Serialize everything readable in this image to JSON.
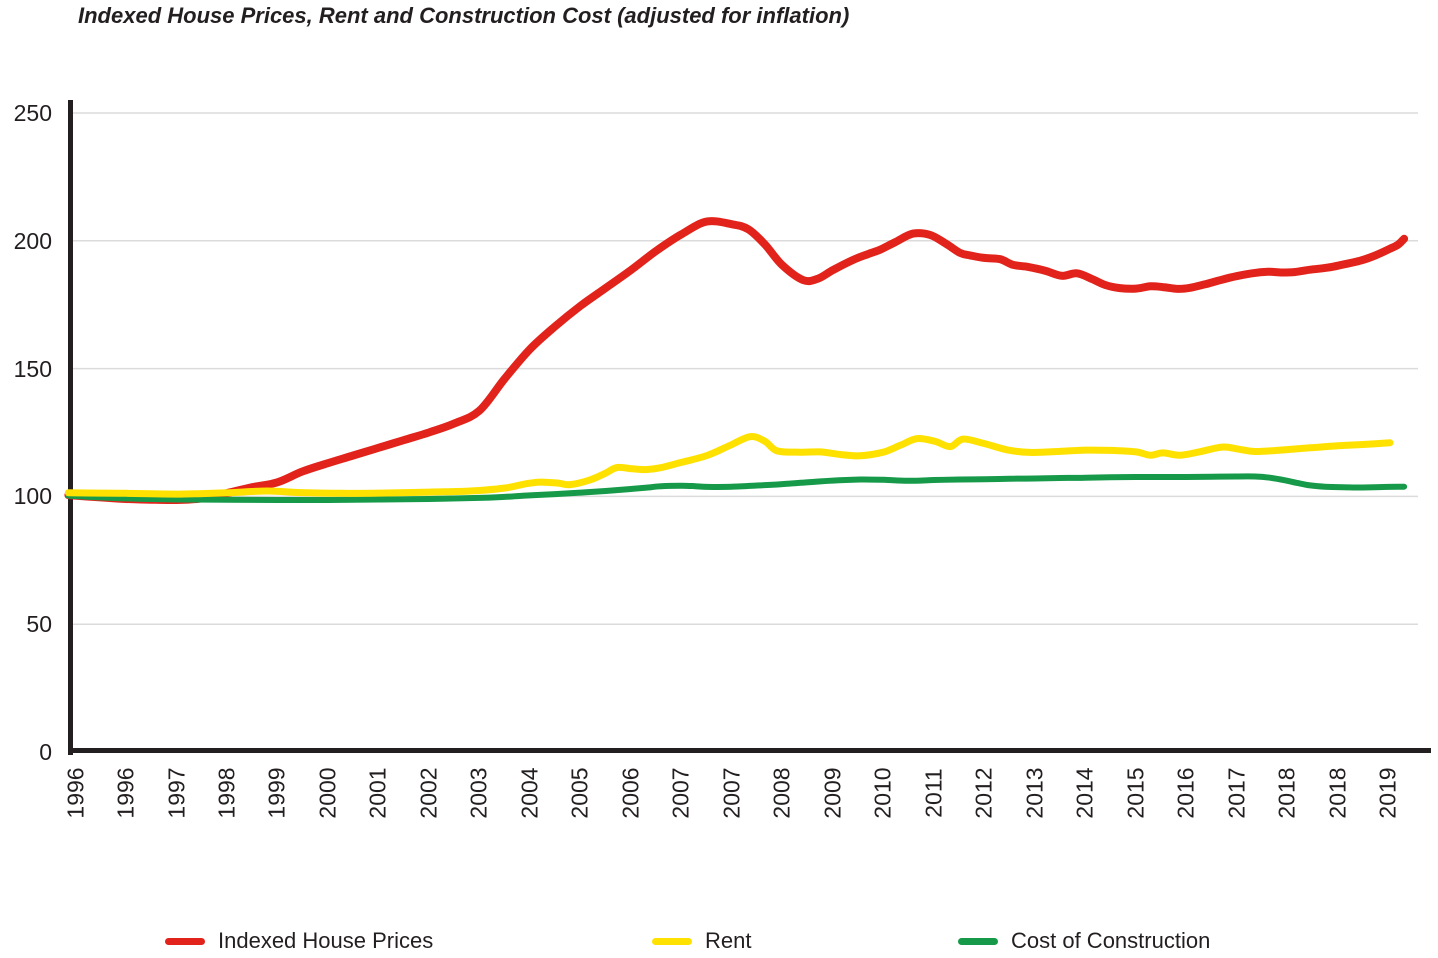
{
  "title": "Indexed House Prices, Rent and Construction Cost (adjusted for inflation)",
  "legend": [
    {
      "label": "Indexed House Prices",
      "color": "#e2231b"
    },
    {
      "label": "Rent",
      "color": "#ffe100"
    },
    {
      "label": "Cost of Construction",
      "color": "#169a49"
    }
  ],
  "colors": {
    "grid": "#dbdbdb",
    "axis": "#231f20",
    "text": "#231f20",
    "background": "#ffffff"
  },
  "chart_data": {
    "type": "line",
    "title": "Indexed House Prices, Rent and Construction Cost (adjusted for inflation)",
    "xlabel": "",
    "ylabel": "",
    "ylim": [
      0,
      250
    ],
    "y_ticks": [
      0,
      50,
      100,
      150,
      200,
      250
    ],
    "grid": "horizontal",
    "legend_position": "bottom",
    "x_unit": "tick-index (0 = first tick, 26 = last tick)",
    "x_tick_labels": [
      "1996",
      "1996",
      "1997",
      "1998",
      "1999",
      "2000",
      "2001",
      "2002",
      "2003",
      "2004",
      "2005",
      "2006",
      "2007",
      "2007",
      "2008",
      "2009",
      "2010",
      "2011",
      "2012",
      "2013",
      "2014",
      "2015",
      "2016",
      "2017",
      "2018",
      "2018",
      "2019"
    ],
    "series": [
      {
        "name": "Indexed House Prices",
        "color": "#e2231b",
        "stroke_width": 8,
        "points": [
          [
            -0.14,
            100.5
          ],
          [
            0.5,
            99.6
          ],
          [
            1.0,
            99.0
          ],
          [
            1.5,
            98.7
          ],
          [
            2.0,
            98.6
          ],
          [
            2.5,
            99.2
          ],
          [
            3.0,
            101.3
          ],
          [
            3.5,
            103.6
          ],
          [
            4.0,
            105.5
          ],
          [
            4.5,
            109.8
          ],
          [
            5.0,
            113.0
          ],
          [
            5.5,
            116.0
          ],
          [
            6.0,
            119.0
          ],
          [
            6.5,
            122.0
          ],
          [
            7.0,
            125.0
          ],
          [
            7.5,
            128.5
          ],
          [
            8.0,
            133.5
          ],
          [
            8.5,
            146.0
          ],
          [
            9.0,
            157.5
          ],
          [
            9.5,
            166.5
          ],
          [
            10.0,
            174.5
          ],
          [
            10.5,
            181.5
          ],
          [
            11.0,
            188.5
          ],
          [
            11.5,
            196.0
          ],
          [
            12.0,
            202.5
          ],
          [
            12.5,
            207.5
          ],
          [
            13.0,
            206.5
          ],
          [
            13.33,
            204.5
          ],
          [
            13.66,
            198.5
          ],
          [
            14.0,
            190.5
          ],
          [
            14.42,
            184.6
          ],
          [
            14.71,
            185.2
          ],
          [
            15.0,
            188.5
          ],
          [
            15.4,
            192.5
          ],
          [
            15.7,
            194.8
          ],
          [
            15.94,
            196.5
          ],
          [
            16.24,
            199.5
          ],
          [
            16.59,
            202.8
          ],
          [
            16.93,
            202.3
          ],
          [
            17.25,
            198.8
          ],
          [
            17.52,
            195.3
          ],
          [
            17.72,
            194.3
          ],
          [
            18.0,
            193.3
          ],
          [
            18.32,
            192.8
          ],
          [
            18.57,
            190.6
          ],
          [
            18.87,
            189.8
          ],
          [
            19.21,
            188.3
          ],
          [
            19.54,
            186.3
          ],
          [
            19.84,
            187.3
          ],
          [
            20.14,
            185.0
          ],
          [
            20.4,
            182.7
          ],
          [
            20.69,
            181.5
          ],
          [
            21.01,
            181.3
          ],
          [
            21.29,
            182.2
          ],
          [
            21.54,
            181.9
          ],
          [
            21.84,
            181.2
          ],
          [
            22.08,
            181.6
          ],
          [
            22.38,
            183.0
          ],
          [
            22.71,
            184.8
          ],
          [
            23.01,
            186.2
          ],
          [
            23.31,
            187.3
          ],
          [
            23.62,
            187.9
          ],
          [
            23.9,
            187.6
          ],
          [
            24.16,
            187.8
          ],
          [
            24.46,
            188.7
          ],
          [
            24.81,
            189.5
          ],
          [
            25.11,
            190.7
          ],
          [
            25.45,
            192.2
          ],
          [
            25.74,
            194.2
          ],
          [
            26.04,
            196.9
          ],
          [
            26.2,
            198.5
          ],
          [
            26.32,
            200.8
          ]
        ]
      },
      {
        "name": "Rent",
        "color": "#ffe100",
        "stroke_width": 7,
        "points": [
          [
            -0.14,
            101.4
          ],
          [
            0.5,
            101.3
          ],
          [
            1.0,
            101.2
          ],
          [
            1.5,
            101.0
          ],
          [
            2.0,
            100.9
          ],
          [
            2.5,
            101.1
          ],
          [
            3.0,
            101.4
          ],
          [
            3.8,
            102.1
          ],
          [
            4.46,
            101.5
          ],
          [
            5.25,
            101.2
          ],
          [
            6.04,
            101.3
          ],
          [
            7.01,
            101.7
          ],
          [
            7.82,
            102.1
          ],
          [
            8.51,
            103.3
          ],
          [
            8.91,
            104.9
          ],
          [
            9.21,
            105.6
          ],
          [
            9.56,
            105.2
          ],
          [
            9.8,
            104.6
          ],
          [
            10.2,
            106.5
          ],
          [
            10.49,
            109.0
          ],
          [
            10.73,
            111.3
          ],
          [
            11.03,
            110.8
          ],
          [
            11.29,
            110.5
          ],
          [
            11.58,
            111.2
          ],
          [
            12.0,
            113.3
          ],
          [
            12.51,
            116.0
          ],
          [
            12.97,
            120.0
          ],
          [
            13.37,
            123.4
          ],
          [
            13.66,
            121.5
          ],
          [
            13.9,
            117.8
          ],
          [
            14.36,
            117.3
          ],
          [
            14.75,
            117.4
          ],
          [
            15.15,
            116.4
          ],
          [
            15.54,
            115.9
          ],
          [
            16.0,
            117.3
          ],
          [
            16.34,
            120.0
          ],
          [
            16.67,
            122.6
          ],
          [
            17.03,
            121.5
          ],
          [
            17.33,
            119.5
          ],
          [
            17.58,
            122.4
          ],
          [
            18.0,
            120.7
          ],
          [
            18.46,
            118.2
          ],
          [
            18.91,
            117.2
          ],
          [
            19.5,
            117.6
          ],
          [
            20.0,
            118.1
          ],
          [
            20.5,
            118.0
          ],
          [
            21.01,
            117.4
          ],
          [
            21.29,
            116.1
          ],
          [
            21.54,
            117.0
          ],
          [
            21.88,
            116.1
          ],
          [
            22.28,
            117.5
          ],
          [
            22.71,
            119.3
          ],
          [
            23.01,
            118.6
          ],
          [
            23.33,
            117.6
          ],
          [
            23.66,
            117.8
          ],
          [
            24.0,
            118.3
          ],
          [
            24.46,
            119.0
          ],
          [
            25.01,
            119.8
          ],
          [
            25.5,
            120.3
          ],
          [
            26.04,
            121.0
          ]
        ]
      },
      {
        "name": "Cost of Construction",
        "color": "#169a49",
        "stroke_width": 6,
        "points": [
          [
            -0.14,
            100.3
          ],
          [
            0.5,
            99.6
          ],
          [
            1.0,
            99.2
          ],
          [
            1.5,
            99.0
          ],
          [
            2.0,
            98.8
          ],
          [
            3.0,
            98.7
          ],
          [
            4.0,
            98.6
          ],
          [
            5.0,
            98.6
          ],
          [
            6.0,
            98.8
          ],
          [
            7.0,
            99.0
          ],
          [
            8.0,
            99.4
          ],
          [
            8.5,
            99.8
          ],
          [
            9.0,
            100.4
          ],
          [
            9.5,
            100.9
          ],
          [
            10.0,
            101.5
          ],
          [
            10.5,
            102.1
          ],
          [
            11.0,
            102.9
          ],
          [
            11.4,
            103.6
          ],
          [
            11.6,
            104.0
          ],
          [
            12.0,
            104.2
          ],
          [
            12.28,
            104.0
          ],
          [
            12.51,
            103.7
          ],
          [
            13.0,
            103.8
          ],
          [
            13.56,
            104.3
          ],
          [
            14.0,
            104.8
          ],
          [
            14.55,
            105.6
          ],
          [
            15.0,
            106.2
          ],
          [
            15.54,
            106.6
          ],
          [
            16.0,
            106.5
          ],
          [
            16.48,
            106.1
          ],
          [
            17.0,
            106.4
          ],
          [
            17.52,
            106.6
          ],
          [
            18.0,
            106.7
          ],
          [
            18.5,
            106.9
          ],
          [
            19.0,
            107.0
          ],
          [
            19.5,
            107.2
          ],
          [
            20.0,
            107.3
          ],
          [
            20.5,
            107.5
          ],
          [
            21.0,
            107.6
          ],
          [
            21.5,
            107.6
          ],
          [
            22.0,
            107.6
          ],
          [
            22.5,
            107.7
          ],
          [
            23.0,
            107.8
          ],
          [
            23.37,
            107.8
          ],
          [
            23.66,
            107.3
          ],
          [
            23.96,
            106.3
          ],
          [
            24.22,
            105.2
          ],
          [
            24.46,
            104.3
          ],
          [
            24.75,
            103.8
          ],
          [
            25.11,
            103.6
          ],
          [
            25.5,
            103.5
          ],
          [
            26.0,
            103.7
          ],
          [
            26.32,
            103.8
          ]
        ]
      }
    ]
  }
}
